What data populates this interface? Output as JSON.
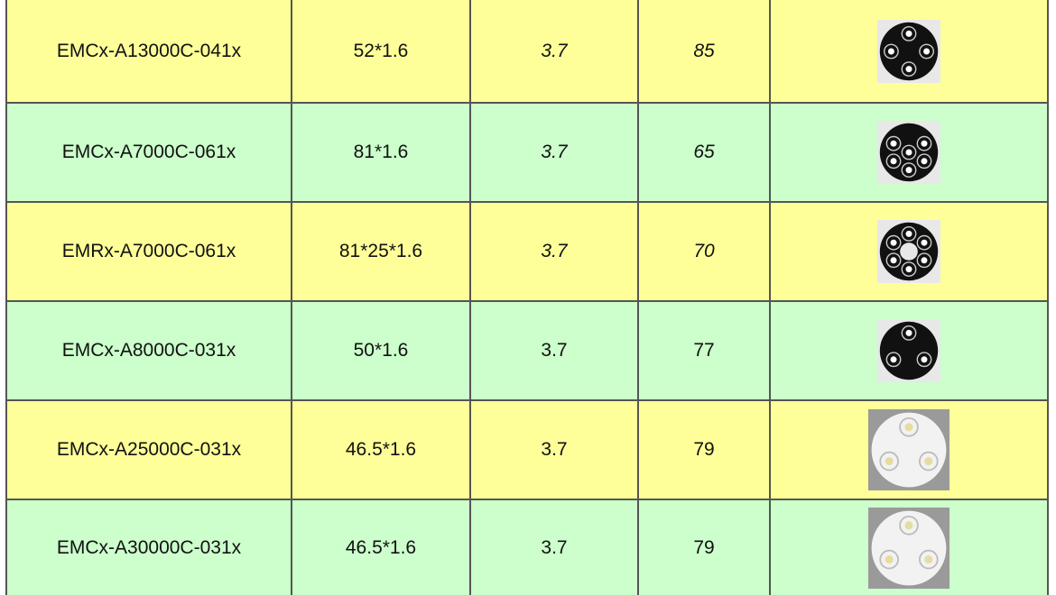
{
  "table": {
    "rows": [
      [
        "EMCx-A13000C-041x",
        "52*1.6",
        "3.7",
        "85"
      ],
      [
        "EMCx-A7000C-061x",
        "81*1.6",
        "3.7",
        "65"
      ],
      [
        "EMRx-A7000C-061x",
        "81*25*1.6",
        "3.7",
        "70"
      ],
      [
        "EMCx-A8000C-031x",
        "50*1.6",
        "3.7",
        "77"
      ],
      [
        "EMCx-A25000C-031x",
        "46.5*1.6",
        "3.7",
        "79"
      ],
      [
        "EMCx-A30000C-031x",
        "46.5*1.6",
        "3.7",
        "79"
      ]
    ]
  }
}
